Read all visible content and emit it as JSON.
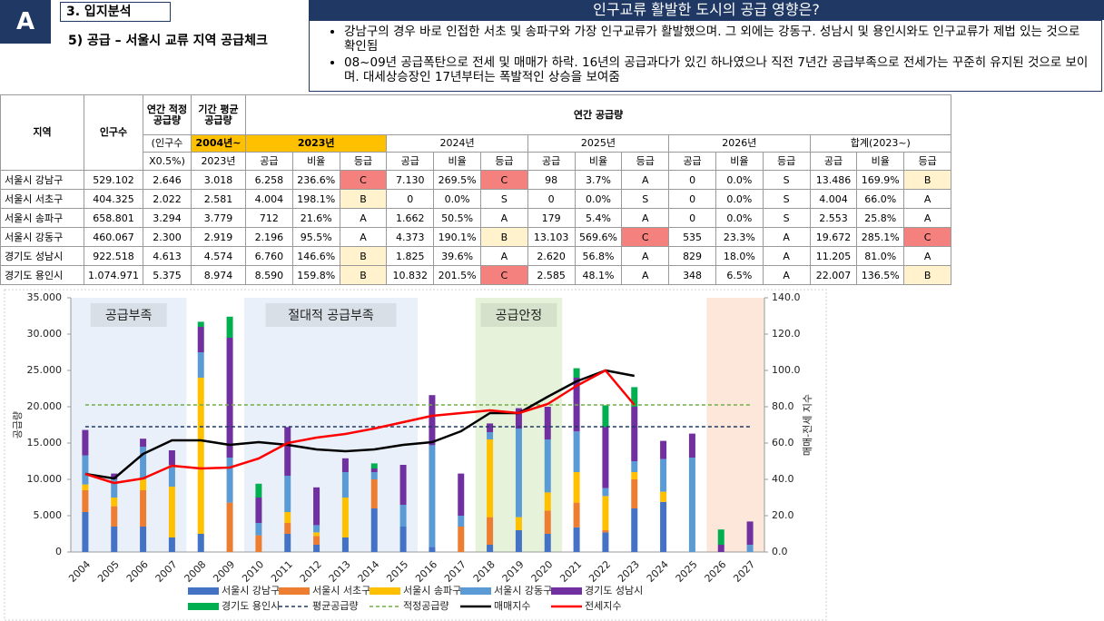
{
  "header": {
    "badge": "A",
    "section": "3. 입지분석",
    "subtitle": "5) 공급 – 서울시 교류 지역 공급체크",
    "headline": "인구교류 활발한 도시의 공급 영향은?",
    "bullets": [
      "강남구의 경우 바로 인접한 서초 및 송파구와 가장 인구교류가 활발했으며. 그 외에는 강동구. 성남시 및 용인시와도 인구교류가 제법 있는 것으로 확인됨",
      "08~09년 공급폭탄으로 전세 및 매매가 하락. 16년의 공급과다가 있긴 하나였으나 직전 7년간 공급부족으로 전세가는 꾸준히 유지된 것으로 보이며. 대세상승장인 17년부터는 폭발적인 상승을 보여줌"
    ]
  },
  "table": {
    "highlight_color": "#ffc000",
    "grade_colors": {
      "C": "#f4817d",
      "B": "#fff2cc"
    },
    "head": [
      [
        "지역",
        "인구수",
        "연간 적정 공급량",
        "기간 평균 공급량",
        "연간 공급량"
      ],
      [
        "(인구수",
        "2004년~",
        "2023년",
        "2024년",
        "2025년",
        "2026년",
        "합계(2023~)"
      ],
      [
        "X0.5%)",
        "2023년",
        "공급",
        "비율",
        "등급",
        "공급",
        "비율",
        "등급",
        "공급",
        "비율",
        "등급",
        "공급",
        "비율",
        "등급",
        "공급",
        "비율",
        "등급"
      ]
    ],
    "rows": [
      [
        "서울시 강남구",
        "529.102",
        "2.646",
        "3.018",
        "6.258",
        "236.6%",
        "C",
        "7.130",
        "269.5%",
        "C",
        "98",
        "3.7%",
        "A",
        "0",
        "0.0%",
        "S",
        "13.486",
        "169.9%",
        "B"
      ],
      [
        "서울시 서초구",
        "404.325",
        "2.022",
        "2.581",
        "4.004",
        "198.1%",
        "B",
        "0",
        "0.0%",
        "S",
        "0",
        "0.0%",
        "S",
        "0",
        "0.0%",
        "S",
        "4.004",
        "66.0%",
        "A"
      ],
      [
        "서울시 송파구",
        "658.801",
        "3.294",
        "3.779",
        "712",
        "21.6%",
        "A",
        "1.662",
        "50.5%",
        "A",
        "179",
        "5.4%",
        "A",
        "0",
        "0.0%",
        "S",
        "2.553",
        "25.8%",
        "A"
      ],
      [
        "서울시 강동구",
        "460.067",
        "2.300",
        "2.919",
        "2.196",
        "95.5%",
        "A",
        "4.373",
        "190.1%",
        "B",
        "13.103",
        "569.6%",
        "C",
        "535",
        "23.3%",
        "A",
        "19.672",
        "285.1%",
        "C"
      ],
      [
        "경기도 성남시",
        "922.518",
        "4.613",
        "4.574",
        "6.760",
        "146.6%",
        "B",
        "1.825",
        "39.6%",
        "A",
        "2.620",
        "56.8%",
        "A",
        "829",
        "18.0%",
        "A",
        "11.205",
        "81.0%",
        "A"
      ],
      [
        "경기도 용인시",
        "1.074.971",
        "5.375",
        "8.974",
        "8.590",
        "159.8%",
        "B",
        "10.832",
        "201.5%",
        "C",
        "2.585",
        "48.1%",
        "A",
        "348",
        "6.5%",
        "A",
        "22.007",
        "136.5%",
        "B"
      ]
    ]
  },
  "chart_data": {
    "type": "bar",
    "ylabel": "공급량",
    "y2label": "매매-전세 지수",
    "grid": false,
    "legend": "bottom",
    "categories": [
      "2004",
      "2005",
      "2006",
      "2007",
      "2008",
      "2009",
      "2010",
      "2011",
      "2012",
      "2013",
      "2014",
      "2015",
      "2016",
      "2017",
      "2018",
      "2019",
      "2020",
      "2021",
      "2022",
      "2023",
      "2024",
      "2025",
      "2026",
      "2027"
    ],
    "ylim": [
      0,
      35000
    ],
    "yticks": [
      0,
      {
        "value": 5000,
        "label": "5.000"
      },
      {
        "value": 10000,
        "label": "10.000"
      },
      {
        "value": 15000,
        "label": "15.000"
      },
      {
        "value": 20000,
        "label": "20.000"
      },
      {
        "value": 25000,
        "label": "25.000"
      },
      {
        "value": 30000,
        "label": "30.000"
      },
      {
        "value": 35000,
        "label": "35.000"
      }
    ],
    "y2lim": [
      0,
      140
    ],
    "y2ticks": [
      {
        "value": 0,
        "label": "0.0"
      },
      {
        "value": 20,
        "label": "20.0"
      },
      {
        "value": 40,
        "label": "40.0"
      },
      {
        "value": 60,
        "label": "60.0"
      },
      {
        "value": 80,
        "label": "80.0"
      },
      {
        "value": 100,
        "label": "100.0"
      },
      {
        "value": 120,
        "label": "120.0"
      },
      {
        "value": 140,
        "label": "140.0"
      }
    ],
    "regions": [
      {
        "label": "공급부족",
        "start": 2004,
        "end": 2007,
        "color": "#e9f0f9"
      },
      {
        "label": "절대적 공급부족",
        "start": 2010,
        "end": 2015,
        "color": "#e9f0f9"
      },
      {
        "label": "공급안정",
        "start": 2018,
        "end": 2020,
        "color": "#e6f3da"
      },
      {
        "start": 2026,
        "end": 2027,
        "color": "#fce7da"
      }
    ],
    "series": [
      {
        "name": "서울시 강남구",
        "type": "bar",
        "color": "#4472c4",
        "values": [
          5500,
          3500,
          3500,
          2000,
          2500,
          0,
          0,
          2500,
          1000,
          2000,
          6000,
          3500,
          700,
          0,
          1000,
          3000,
          2500,
          3400,
          2700,
          6000,
          6900,
          0,
          0,
          0
        ]
      },
      {
        "name": "서울시 서초구",
        "type": "bar",
        "color": "#ed7d31",
        "values": [
          3000,
          2800,
          5000,
          0,
          0,
          6800,
          2300,
          1500,
          1200,
          0,
          4000,
          0,
          0,
          3500,
          3800,
          0,
          3200,
          3400,
          300,
          4000,
          0,
          0,
          0,
          0
        ]
      },
      {
        "name": "서울시 송파구",
        "type": "bar",
        "color": "#ffc000",
        "values": [
          800,
          1200,
          1500,
          7000,
          21500,
          0,
          0,
          1500,
          500,
          5500,
          0,
          0,
          0,
          0,
          10700,
          1800,
          2500,
          4200,
          4700,
          1000,
          1400,
          0,
          0,
          0
        ]
      },
      {
        "name": "서울시 강동구",
        "type": "bar",
        "color": "#5b9bd5",
        "values": [
          4000,
          2500,
          4500,
          3000,
          3500,
          6200,
          1700,
          5000,
          1000,
          3500,
          1000,
          3000,
          14000,
          1500,
          1000,
          12200,
          7300,
          5600,
          1100,
          1500,
          4500,
          13000,
          0,
          1000
        ]
      },
      {
        "name": "경기도 성남시",
        "type": "bar",
        "color": "#7030a0",
        "values": [
          3500,
          800,
          1100,
          2000,
          3500,
          16500,
          3500,
          6700,
          5200,
          1900,
          500,
          5500,
          6900,
          5800,
          1200,
          2800,
          4500,
          7400,
          8400,
          7500,
          2500,
          3300,
          1000,
          3200
        ]
      },
      {
        "name": "경기도 용인시",
        "type": "bar",
        "color": "#00b050",
        "values": [
          0,
          0,
          0,
          0,
          700,
          2900,
          1900,
          0,
          0,
          0,
          700,
          0,
          0,
          0,
          0,
          0,
          0,
          1300,
          3000,
          2700,
          0,
          0,
          2100,
          0
        ]
      },
      {
        "name": "평균공급량",
        "type": "line",
        "dash": true,
        "color": "#1f3864",
        "values": [
          17250,
          17250,
          17250,
          17250,
          17250,
          17250,
          17250,
          17250,
          17250,
          17250,
          17250,
          17250,
          17250,
          17250,
          17250,
          17250,
          17250,
          17250,
          17250,
          17250,
          17250,
          17250,
          17250,
          17250
        ]
      },
      {
        "name": "적정공급량",
        "type": "line",
        "dash": true,
        "color": "#70ad47",
        "values": [
          20250,
          20250,
          20250,
          20250,
          20250,
          20250,
          20250,
          20250,
          20250,
          20250,
          20250,
          20250,
          20250,
          20250,
          20250,
          20250,
          20250,
          20250,
          20250,
          20250,
          20250,
          20250,
          20250,
          20250
        ]
      },
      {
        "name": "매매지수",
        "type": "line",
        "axis": "y2",
        "color": "#000000",
        "values": [
          43,
          40.5,
          54,
          61.5,
          61.5,
          59,
          60.5,
          59,
          56.5,
          55.5,
          56.5,
          59,
          60.5,
          66.5,
          76.5,
          76.5,
          85.5,
          94,
          100,
          97,
          null,
          null,
          null,
          null
        ]
      },
      {
        "name": "전세지수",
        "type": "line",
        "axis": "y2",
        "color": "#ff0000",
        "values": [
          43,
          38,
          40.5,
          47.5,
          46,
          46.5,
          51.5,
          60,
          63,
          65,
          68,
          71.5,
          75,
          76.5,
          78,
          76.5,
          81.5,
          91.5,
          100,
          81,
          null,
          null,
          null,
          null
        ]
      }
    ]
  }
}
